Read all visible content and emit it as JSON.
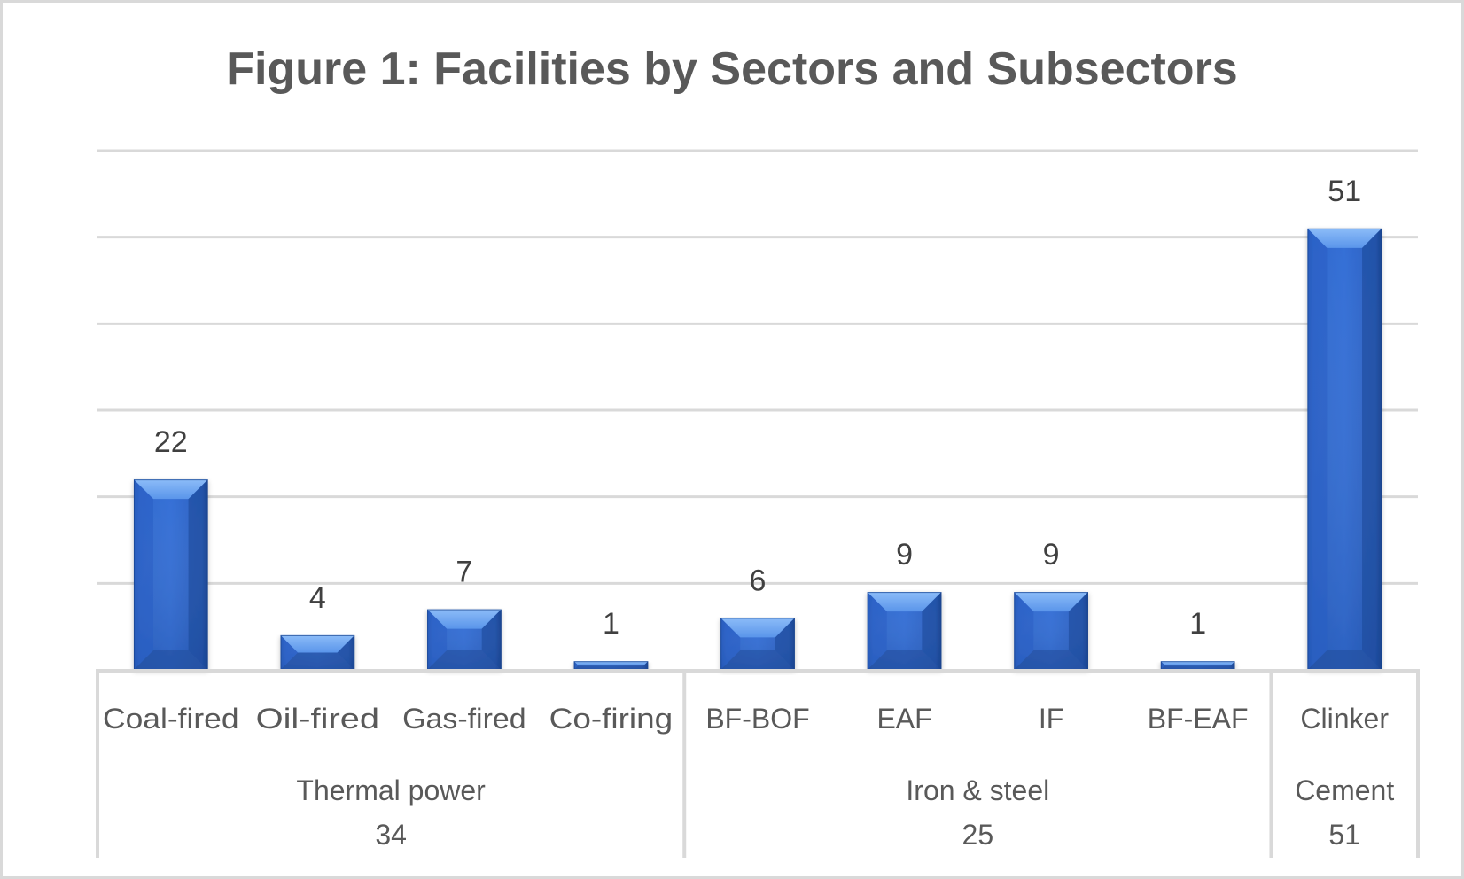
{
  "chart_data": {
    "type": "bar",
    "title": "Figure 1: Facilities by Sectors and Subsectors",
    "xlabel": "",
    "ylabel": "",
    "ylim": [
      0,
      60
    ],
    "y_gridlines": [
      10,
      20,
      30,
      40,
      50,
      60
    ],
    "grid": true,
    "y_tick_labels_visible": false,
    "legend": "none",
    "categories": [
      "Coal-fired",
      "Oil-fired",
      "Gas-fired",
      "Co-firing",
      "BF-BOF",
      "EAF",
      "IF",
      "BF-EAF",
      "Clinker"
    ],
    "values": [
      22,
      4,
      7,
      1,
      6,
      9,
      9,
      1,
      51
    ],
    "data_labels": [
      "22",
      "4",
      "7",
      "1",
      "6",
      "9",
      "9",
      "1",
      "51"
    ],
    "groups": [
      {
        "name": "Thermal power",
        "total": "34",
        "count": 4
      },
      {
        "name": "Iron & steel",
        "total": "25",
        "count": 4
      },
      {
        "name": "Cement",
        "total": "51",
        "count": 1
      }
    ],
    "colors": {
      "bar": "#2f68cc",
      "bar_dark": "#1d4a9a",
      "bar_light": "#73aaf2",
      "grid": "#d9d9d9",
      "title": "#595959",
      "label": "#404040",
      "axis_text": "#595959"
    }
  }
}
